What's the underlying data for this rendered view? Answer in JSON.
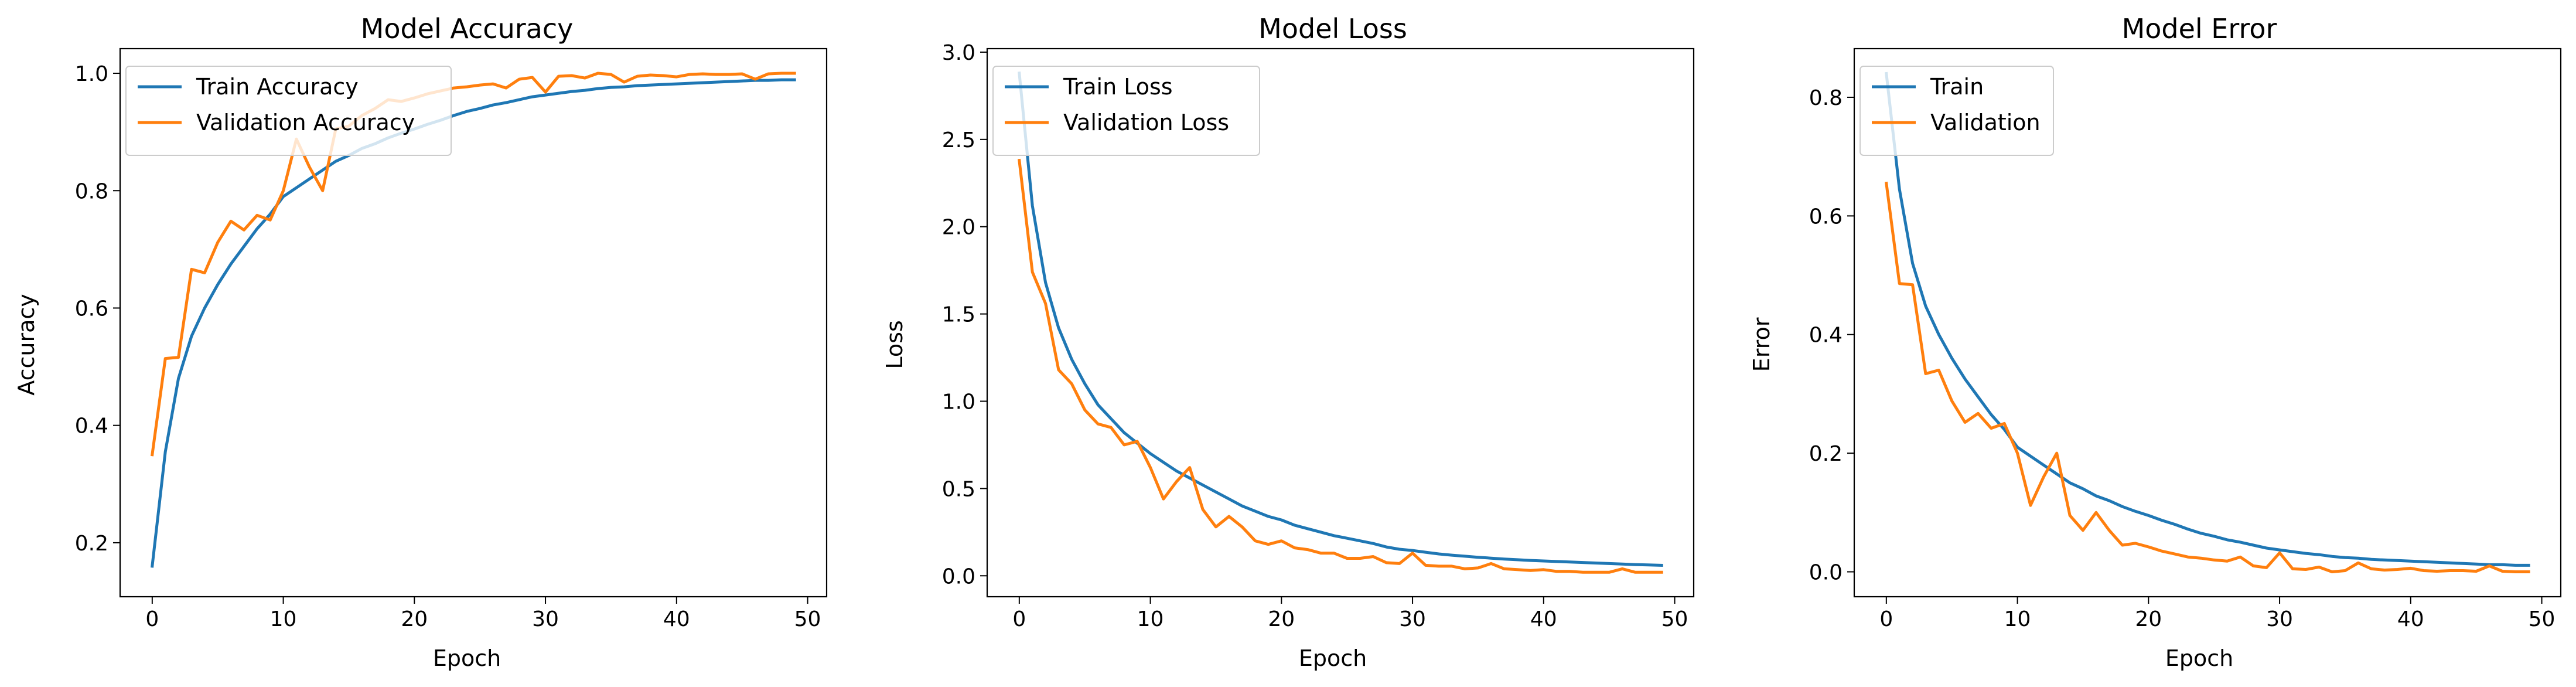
{
  "chart_data": [
    {
      "type": "line",
      "title": "Model Accuracy",
      "xlabel": "Epoch",
      "ylabel": "Accuracy",
      "xlim": [
        -2.45,
        51.45
      ],
      "ylim": [
        0.108,
        1.042
      ],
      "xticks": [
        0,
        10,
        20,
        30,
        40,
        50
      ],
      "yticks": [
        0.2,
        0.4,
        0.6,
        0.8,
        1.0
      ],
      "ytick_labels": [
        "0.2",
        "0.4",
        "0.6",
        "0.8",
        "1.0"
      ],
      "legend_placement": "upper-left",
      "grid": false,
      "series": [
        {
          "name": "Train Accuracy",
          "color": "#1f77b4",
          "values": [
            0.16,
            0.355,
            0.48,
            0.552,
            0.6,
            0.64,
            0.675,
            0.705,
            0.735,
            0.76,
            0.79,
            0.805,
            0.82,
            0.835,
            0.85,
            0.86,
            0.872,
            0.88,
            0.89,
            0.898,
            0.905,
            0.913,
            0.92,
            0.928,
            0.935,
            0.94,
            0.946,
            0.95,
            0.955,
            0.96,
            0.963,
            0.966,
            0.969,
            0.971,
            0.974,
            0.976,
            0.977,
            0.979,
            0.98,
            0.981,
            0.982,
            0.983,
            0.984,
            0.985,
            0.986,
            0.987,
            0.988,
            0.988,
            0.989,
            0.989
          ]
        },
        {
          "name": "Validation Accuracy",
          "color": "#ff7f0e",
          "values": [
            0.35,
            0.514,
            0.516,
            0.666,
            0.66,
            0.712,
            0.748,
            0.733,
            0.758,
            0.75,
            0.8,
            0.888,
            0.84,
            0.8,
            0.905,
            0.91,
            0.928,
            0.94,
            0.955,
            0.952,
            0.958,
            0.965,
            0.97,
            0.975,
            0.977,
            0.98,
            0.982,
            0.975,
            0.99,
            0.993,
            0.968,
            0.995,
            0.996,
            0.992,
            1.0,
            0.998,
            0.985,
            0.995,
            0.997,
            0.996,
            0.994,
            0.998,
            0.999,
            0.998,
            0.998,
            0.999,
            0.99,
            0.999,
            1.0,
            1.0
          ]
        }
      ]
    },
    {
      "type": "line",
      "title": "Model Loss",
      "xlabel": "Epoch",
      "ylabel": "Loss",
      "xlim": [
        -2.45,
        51.45
      ],
      "ylim": [
        -0.12,
        3.02
      ],
      "xticks": [
        0,
        10,
        20,
        30,
        40,
        50
      ],
      "yticks": [
        0.0,
        0.5,
        1.0,
        1.5,
        2.0,
        2.5,
        3.0
      ],
      "ytick_labels": [
        "0.0",
        "0.5",
        "1.0",
        "1.5",
        "2.0",
        "2.5",
        "3.0"
      ],
      "legend_placement": "upper-left",
      "grid": false,
      "series": [
        {
          "name": "Train Loss",
          "color": "#1f77b4",
          "values": [
            2.88,
            2.12,
            1.68,
            1.42,
            1.24,
            1.1,
            0.98,
            0.9,
            0.82,
            0.76,
            0.7,
            0.65,
            0.6,
            0.56,
            0.52,
            0.48,
            0.44,
            0.4,
            0.37,
            0.34,
            0.32,
            0.29,
            0.27,
            0.25,
            0.23,
            0.215,
            0.2,
            0.185,
            0.165,
            0.152,
            0.145,
            0.135,
            0.125,
            0.118,
            0.112,
            0.106,
            0.101,
            0.096,
            0.092,
            0.088,
            0.085,
            0.082,
            0.079,
            0.076,
            0.073,
            0.07,
            0.067,
            0.064,
            0.062,
            0.06
          ]
        },
        {
          "name": "Validation Loss",
          "color": "#ff7f0e",
          "values": [
            2.38,
            1.74,
            1.56,
            1.18,
            1.1,
            0.95,
            0.87,
            0.85,
            0.75,
            0.77,
            0.62,
            0.44,
            0.54,
            0.62,
            0.38,
            0.28,
            0.34,
            0.28,
            0.2,
            0.18,
            0.2,
            0.16,
            0.15,
            0.13,
            0.13,
            0.1,
            0.1,
            0.11,
            0.075,
            0.07,
            0.13,
            0.06,
            0.055,
            0.055,
            0.04,
            0.045,
            0.07,
            0.04,
            0.035,
            0.03,
            0.035,
            0.025,
            0.025,
            0.02,
            0.02,
            0.02,
            0.04,
            0.02,
            0.02,
            0.02
          ]
        }
      ]
    },
    {
      "type": "line",
      "title": "Model Error",
      "xlabel": "Epoch",
      "ylabel": "Error",
      "xlim": [
        -2.45,
        51.45
      ],
      "ylim": [
        -0.042,
        0.882
      ],
      "xticks": [
        0,
        10,
        20,
        30,
        40,
        50
      ],
      "yticks": [
        0.0,
        0.2,
        0.4,
        0.6,
        0.8
      ],
      "ytick_labels": [
        "0.0",
        "0.2",
        "0.4",
        "0.6",
        "0.8"
      ],
      "legend_placement": "upper-left",
      "grid": false,
      "series": [
        {
          "name": "Train",
          "color": "#1f77b4",
          "values": [
            0.84,
            0.645,
            0.52,
            0.448,
            0.4,
            0.36,
            0.325,
            0.295,
            0.265,
            0.24,
            0.21,
            0.195,
            0.18,
            0.165,
            0.15,
            0.14,
            0.128,
            0.12,
            0.11,
            0.102,
            0.095,
            0.087,
            0.08,
            0.072,
            0.065,
            0.06,
            0.054,
            0.05,
            0.045,
            0.04,
            0.037,
            0.034,
            0.031,
            0.029,
            0.026,
            0.024,
            0.023,
            0.021,
            0.02,
            0.019,
            0.018,
            0.017,
            0.016,
            0.015,
            0.014,
            0.013,
            0.012,
            0.012,
            0.011,
            0.011
          ]
        },
        {
          "name": "Validation",
          "color": "#ff7f0e",
          "values": [
            0.655,
            0.486,
            0.484,
            0.334,
            0.34,
            0.288,
            0.252,
            0.267,
            0.242,
            0.25,
            0.2,
            0.112,
            0.16,
            0.2,
            0.095,
            0.07,
            0.1,
            0.07,
            0.045,
            0.048,
            0.042,
            0.035,
            0.03,
            0.025,
            0.023,
            0.02,
            0.018,
            0.025,
            0.01,
            0.007,
            0.032,
            0.005,
            0.004,
            0.008,
            0.0,
            0.002,
            0.015,
            0.005,
            0.003,
            0.004,
            0.006,
            0.002,
            0.001,
            0.002,
            0.002,
            0.001,
            0.01,
            0.001,
            0.0,
            0.0
          ]
        }
      ]
    }
  ]
}
